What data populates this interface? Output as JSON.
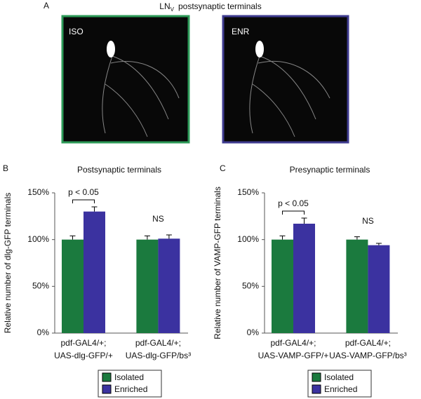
{
  "panel_a": {
    "label": "A",
    "title_main": "LN",
    "title_sub": "V",
    "title_rest": "postsynaptic terminals",
    "images": [
      {
        "label": "ISO"
      },
      {
        "label": "ENR"
      }
    ]
  },
  "chart_data": [
    {
      "type": "bar",
      "panel": "B",
      "title": "Postsynaptic terminals",
      "ylabel": "Relative number of dlg-GFP terminals",
      "categories": [
        [
          "pdf-GAL4/+;",
          "UAS-dlg-GFP/+"
        ],
        [
          "pdf-GAL4/+;",
          "UAS-dlg-GFP/bs³"
        ]
      ],
      "series": [
        {
          "name": "Isolated",
          "color": "#1b7a3e",
          "values": [
            100,
            100
          ],
          "errors": [
            4,
            4
          ]
        },
        {
          "name": "Enriched",
          "color": "#3b32a0",
          "values": [
            130,
            101
          ],
          "errors": [
            5,
            4
          ]
        }
      ],
      "ylim": [
        0,
        150
      ],
      "yticks": [
        {
          "value": 0,
          "label": "0%"
        },
        {
          "value": 50,
          "label": "50%"
        },
        {
          "value": 100,
          "label": "100%"
        },
        {
          "value": 150,
          "label": "150%"
        }
      ],
      "annotations": [
        "p < 0.05",
        "NS"
      ]
    },
    {
      "type": "bar",
      "panel": "C",
      "title": "Presynaptic terminals",
      "ylabel": "Relative number of VAMP-GFP terminals",
      "categories": [
        [
          "pdf-GAL4/+;",
          "UAS-VAMP-GFP/+"
        ],
        [
          "pdf-GAL4/+;",
          "UAS-VAMP-GFP/bs³"
        ]
      ],
      "series": [
        {
          "name": "Isolated",
          "color": "#1b7a3e",
          "values": [
            100,
            100
          ],
          "errors": [
            4,
            3
          ]
        },
        {
          "name": "Enriched",
          "color": "#3b32a0",
          "values": [
            117,
            94
          ],
          "errors": [
            6,
            2
          ]
        }
      ],
      "ylim": [
        0,
        150
      ],
      "yticks": [
        {
          "value": 0,
          "label": "0%"
        },
        {
          "value": 50,
          "label": "50%"
        },
        {
          "value": 100,
          "label": "100%"
        },
        {
          "value": 150,
          "label": "150%"
        }
      ],
      "annotations": [
        "p < 0.05",
        "NS"
      ]
    }
  ]
}
